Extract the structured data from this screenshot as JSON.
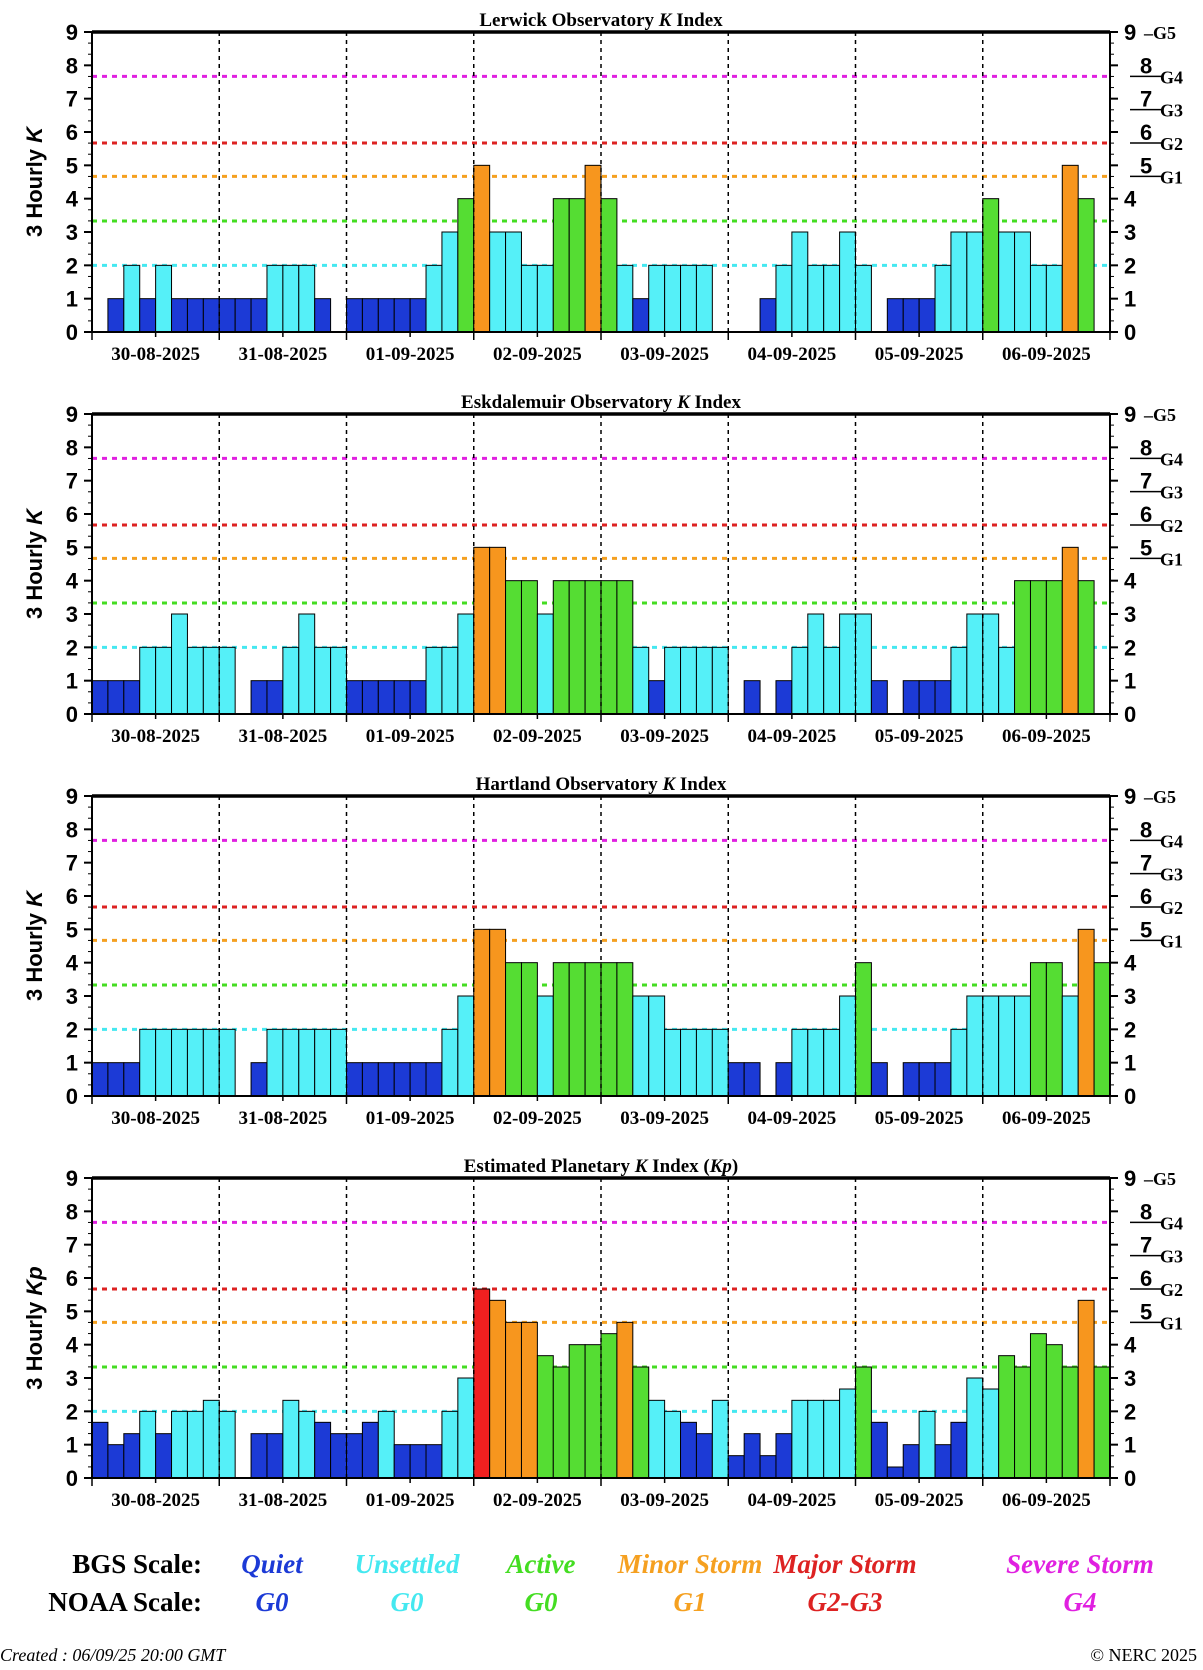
{
  "chart_data": [
    {
      "type": "bar",
      "title": "Lerwick Observatory K Index",
      "title_parts": [
        "Lerwick Observatory ",
        "K",
        " Index"
      ],
      "ylabel": "3 Hourly K",
      "ylabel_parts": [
        "3 Hourly ",
        "K"
      ],
      "ylim": [
        0,
        9
      ],
      "x_labels": [
        "30-08-2025",
        "31-08-2025",
        "01-09-2025",
        "02-09-2025",
        "03-09-2025",
        "04-09-2025",
        "05-09-2025",
        "06-09-2025"
      ],
      "values": [
        0,
        1,
        2,
        1,
        2,
        1,
        1,
        1,
        1,
        1,
        1,
        2,
        2,
        2,
        1,
        0,
        1,
        1,
        1,
        1,
        1,
        2,
        3,
        4,
        5,
        3,
        3,
        2,
        2,
        4,
        4,
        5,
        4,
        2,
        1,
        2,
        2,
        2,
        2,
        0,
        0,
        0,
        1,
        2,
        3,
        2,
        2,
        3,
        2,
        0,
        1,
        1,
        1,
        2,
        3,
        3,
        4,
        3,
        3,
        2,
        2,
        5,
        4
      ]
    },
    {
      "type": "bar",
      "title": "Eskdalemuir Observatory K Index",
      "title_parts": [
        "Eskdalemuir Observatory ",
        "K",
        " Index"
      ],
      "ylabel": "3 Hourly K",
      "ylabel_parts": [
        "3 Hourly ",
        "K"
      ],
      "ylim": [
        0,
        9
      ],
      "x_labels": [
        "30-08-2025",
        "31-08-2025",
        "01-09-2025",
        "02-09-2025",
        "03-09-2025",
        "04-09-2025",
        "05-09-2025",
        "06-09-2025"
      ],
      "values": [
        1,
        1,
        1,
        2,
        2,
        3,
        2,
        2,
        2,
        0,
        1,
        1,
        2,
        3,
        2,
        2,
        1,
        1,
        1,
        1,
        1,
        2,
        2,
        3,
        5,
        5,
        4,
        4,
        3,
        4,
        4,
        4,
        4,
        4,
        2,
        1,
        2,
        2,
        2,
        2,
        0,
        1,
        0,
        1,
        2,
        3,
        2,
        3,
        3,
        1,
        0,
        1,
        1,
        1,
        2,
        3,
        3,
        2,
        4,
        4,
        4,
        5,
        4
      ]
    },
    {
      "type": "bar",
      "title": "Hartland Observatory K Index",
      "title_parts": [
        "Hartland Observatory ",
        "K",
        " Index"
      ],
      "ylabel": "3 Hourly K",
      "ylabel_parts": [
        "3 Hourly ",
        "K"
      ],
      "ylim": [
        0,
        9
      ],
      "x_labels": [
        "30-08-2025",
        "31-08-2025",
        "01-09-2025",
        "02-09-2025",
        "03-09-2025",
        "04-09-2025",
        "05-09-2025",
        "06-09-2025"
      ],
      "values": [
        1,
        1,
        1,
        2,
        2,
        2,
        2,
        2,
        2,
        0,
        1,
        2,
        2,
        2,
        2,
        2,
        1,
        1,
        1,
        1,
        1,
        1,
        2,
        3,
        5,
        5,
        4,
        4,
        3,
        4,
        4,
        4,
        4,
        4,
        3,
        3,
        2,
        2,
        2,
        2,
        1,
        1,
        0,
        1,
        2,
        2,
        2,
        3,
        4,
        1,
        0,
        1,
        1,
        1,
        2,
        3,
        3,
        3,
        3,
        4,
        4,
        3,
        5,
        4
      ]
    },
    {
      "type": "bar",
      "title": "Estimated Planetary K Index (Kp)",
      "title_parts": [
        "Estimated Planetary ",
        "K",
        " Index (",
        "Kp",
        ")"
      ],
      "ylabel": "3 Hourly Kp",
      "ylabel_parts": [
        "3 Hourly ",
        "Kp"
      ],
      "ylim": [
        0,
        9
      ],
      "x_labels": [
        "30-08-2025",
        "31-08-2025",
        "01-09-2025",
        "02-09-2025",
        "03-09-2025",
        "04-09-2025",
        "05-09-2025",
        "06-09-2025"
      ],
      "values": [
        1.67,
        1,
        1.33,
        2,
        1.33,
        2,
        2,
        2.33,
        2,
        0,
        1.33,
        1.33,
        2.33,
        2,
        1.67,
        1.33,
        1.33,
        1.67,
        2,
        1,
        1,
        1,
        2,
        3,
        5.67,
        5.33,
        4.67,
        4.67,
        3.67,
        3.33,
        4,
        4,
        4.33,
        4.67,
        3.33,
        2.33,
        2,
        1.67,
        1.33,
        2.33,
        0.67,
        1.33,
        0.67,
        1.33,
        2.33,
        2.33,
        2.33,
        2.67,
        3.33,
        1.67,
        0.33,
        1,
        2,
        1,
        1.67,
        3,
        2.67,
        3.67,
        3.33,
        4.33,
        4,
        3.33,
        5.33,
        3.33
      ]
    }
  ],
  "threshold_lines": [
    {
      "level": "unsettled",
      "y": 2,
      "color": "#44e8f0"
    },
    {
      "level": "active",
      "y": 3.33,
      "color": "#44dd22"
    },
    {
      "level": "minor",
      "y": 4.67,
      "color": "#f5a020"
    },
    {
      "level": "major",
      "y": 5.67,
      "color": "#dd2222"
    },
    {
      "level": "severe",
      "y": 7.67,
      "color": "#e020e0"
    }
  ],
  "right_axis": {
    "ticks": [
      "0",
      "1",
      "2",
      "3",
      "4",
      "5",
      "6",
      "7",
      "8",
      "9"
    ],
    "g_labels": [
      {
        "k": "5",
        "g": "G1",
        "y": 4.67
      },
      {
        "k": "6",
        "g": "G2",
        "y": 5.67
      },
      {
        "k": "7",
        "g": "G3",
        "y": 6.67
      },
      {
        "k": "8",
        "g": "G4",
        "y": 7.67
      },
      {
        "k": "9",
        "g": "G5",
        "y": 9
      }
    ]
  },
  "colors": {
    "quiet": "#1c3ad6",
    "unsettled": "#55f0f8",
    "active": "#55dd33",
    "minor": "#f7961e",
    "major": "#f02020",
    "severe": "#e020e0"
  },
  "legend": {
    "bgs_label": "BGS Scale:",
    "noaa_label": "NOAA Scale:",
    "items": [
      {
        "bgs": "Quiet",
        "noaa": "G0",
        "color": "#1c3ad6"
      },
      {
        "bgs": "Unsettled",
        "noaa": "G0",
        "color": "#44e8f0"
      },
      {
        "bgs": "Active",
        "noaa": "G0",
        "color": "#44dd22"
      },
      {
        "bgs": "Minor Storm",
        "noaa": "G1",
        "color": "#f5a020"
      },
      {
        "bgs": "Major Storm",
        "noaa": "G2-G3",
        "color": "#dd2222"
      },
      {
        "bgs": "Severe Storm",
        "noaa": "G4",
        "color": "#e020e0"
      }
    ]
  },
  "footer": {
    "created": "Created : 06/09/25 20:00 GMT",
    "copyright": "© NERC 2025"
  }
}
